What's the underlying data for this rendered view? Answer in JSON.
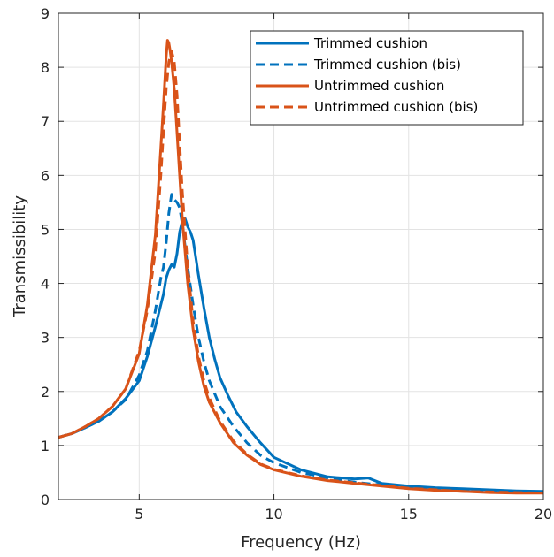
{
  "chart_data": {
    "type": "line",
    "xlabel": "Frequency (Hz)",
    "ylabel": "Transmissibility",
    "xlim": [
      2,
      20
    ],
    "ylim": [
      0,
      9
    ],
    "xticks": [
      5,
      10,
      15,
      20
    ],
    "yticks": [
      0,
      1,
      2,
      3,
      4,
      5,
      6,
      7,
      8,
      9
    ],
    "grid": true,
    "legend_position": "top-right",
    "series": [
      {
        "name": "Trimmed cushion",
        "color": "#0072BD",
        "style": "solid",
        "x": [
          2,
          2.5,
          3,
          3.5,
          4,
          4.5,
          5,
          5.3,
          5.6,
          5.9,
          6.0,
          6.1,
          6.2,
          6.3,
          6.4,
          6.5,
          6.6,
          6.7,
          6.8,
          6.9,
          7.0,
          7.2,
          7.4,
          7.6,
          7.8,
          8.0,
          8.3,
          8.6,
          9.0,
          9.5,
          10,
          11,
          12,
          13,
          13.5,
          14,
          15,
          16,
          17,
          18,
          19,
          20
        ],
        "y": [
          1.15,
          1.22,
          1.33,
          1.45,
          1.62,
          1.87,
          2.2,
          2.65,
          3.2,
          3.8,
          4.1,
          4.25,
          4.35,
          4.3,
          4.55,
          4.95,
          5.15,
          5.2,
          5.05,
          4.95,
          4.8,
          4.15,
          3.55,
          3.0,
          2.6,
          2.25,
          1.92,
          1.62,
          1.35,
          1.05,
          0.78,
          0.55,
          0.42,
          0.38,
          0.4,
          0.3,
          0.25,
          0.22,
          0.2,
          0.18,
          0.16,
          0.15
        ]
      },
      {
        "name": "Trimmed cushion (bis)",
        "color": "#0072BD",
        "style": "dashed",
        "x": [
          2,
          2.5,
          3,
          3.5,
          4,
          4.5,
          5,
          5.3,
          5.6,
          5.8,
          5.9,
          6.0,
          6.1,
          6.2,
          6.3,
          6.4,
          6.5,
          6.6,
          6.8,
          7.0,
          7.2,
          7.4,
          7.6,
          8.0,
          8.5,
          9.0,
          9.5,
          10,
          11,
          12,
          13,
          14,
          15,
          16,
          17,
          18,
          19,
          20
        ],
        "y": [
          1.15,
          1.22,
          1.33,
          1.45,
          1.62,
          1.85,
          2.3,
          2.75,
          3.5,
          4.1,
          4.3,
          4.75,
          5.3,
          5.65,
          5.55,
          5.5,
          5.4,
          5.1,
          4.3,
          3.6,
          3.0,
          2.55,
          2.2,
          1.72,
          1.35,
          1.05,
          0.82,
          0.68,
          0.5,
          0.4,
          0.32,
          0.27,
          0.23,
          0.2,
          0.18,
          0.16,
          0.15,
          0.14
        ]
      },
      {
        "name": "Untrimmed cushion",
        "color": "#D95319",
        "style": "solid",
        "x": [
          2,
          2.5,
          3,
          3.5,
          4,
          4.5,
          5,
          5.3,
          5.6,
          5.8,
          5.9,
          6.0,
          6.05,
          6.1,
          6.15,
          6.2,
          6.3,
          6.4,
          6.5,
          6.6,
          6.8,
          7.0,
          7.2,
          7.4,
          7.6,
          8.0,
          8.5,
          9.0,
          9.5,
          10,
          11,
          12,
          13,
          14,
          15,
          16,
          17,
          18,
          19,
          20
        ],
        "y": [
          1.15,
          1.22,
          1.35,
          1.5,
          1.72,
          2.05,
          2.7,
          3.6,
          4.9,
          6.5,
          7.3,
          8.2,
          8.5,
          8.45,
          8.3,
          8.1,
          7.6,
          6.8,
          6.0,
          5.2,
          4.0,
          3.15,
          2.55,
          2.1,
          1.8,
          1.42,
          1.05,
          0.82,
          0.65,
          0.55,
          0.43,
          0.35,
          0.3,
          0.25,
          0.2,
          0.17,
          0.15,
          0.13,
          0.12,
          0.12
        ]
      },
      {
        "name": "Untrimmed cushion (bis)",
        "color": "#D95319",
        "style": "dashed",
        "x": [
          2,
          2.5,
          3,
          3.5,
          4,
          4.5,
          5,
          5.3,
          5.6,
          5.8,
          5.9,
          6.0,
          6.1,
          6.2,
          6.3,
          6.4,
          6.5,
          6.6,
          6.8,
          7.0,
          7.2,
          7.4,
          7.6,
          8.0,
          8.5,
          9.0,
          9.5,
          10,
          11,
          12,
          13,
          14,
          15,
          16,
          17,
          18,
          19,
          20
        ],
        "y": [
          1.15,
          1.22,
          1.35,
          1.5,
          1.72,
          2.05,
          2.75,
          3.5,
          4.6,
          6.0,
          6.8,
          7.6,
          8.1,
          8.3,
          8.1,
          7.5,
          6.6,
          5.7,
          4.3,
          3.3,
          2.65,
          2.2,
          1.88,
          1.45,
          1.08,
          0.84,
          0.66,
          0.56,
          0.44,
          0.36,
          0.31,
          0.26,
          0.21,
          0.18,
          0.15,
          0.14,
          0.13,
          0.12
        ]
      }
    ]
  }
}
